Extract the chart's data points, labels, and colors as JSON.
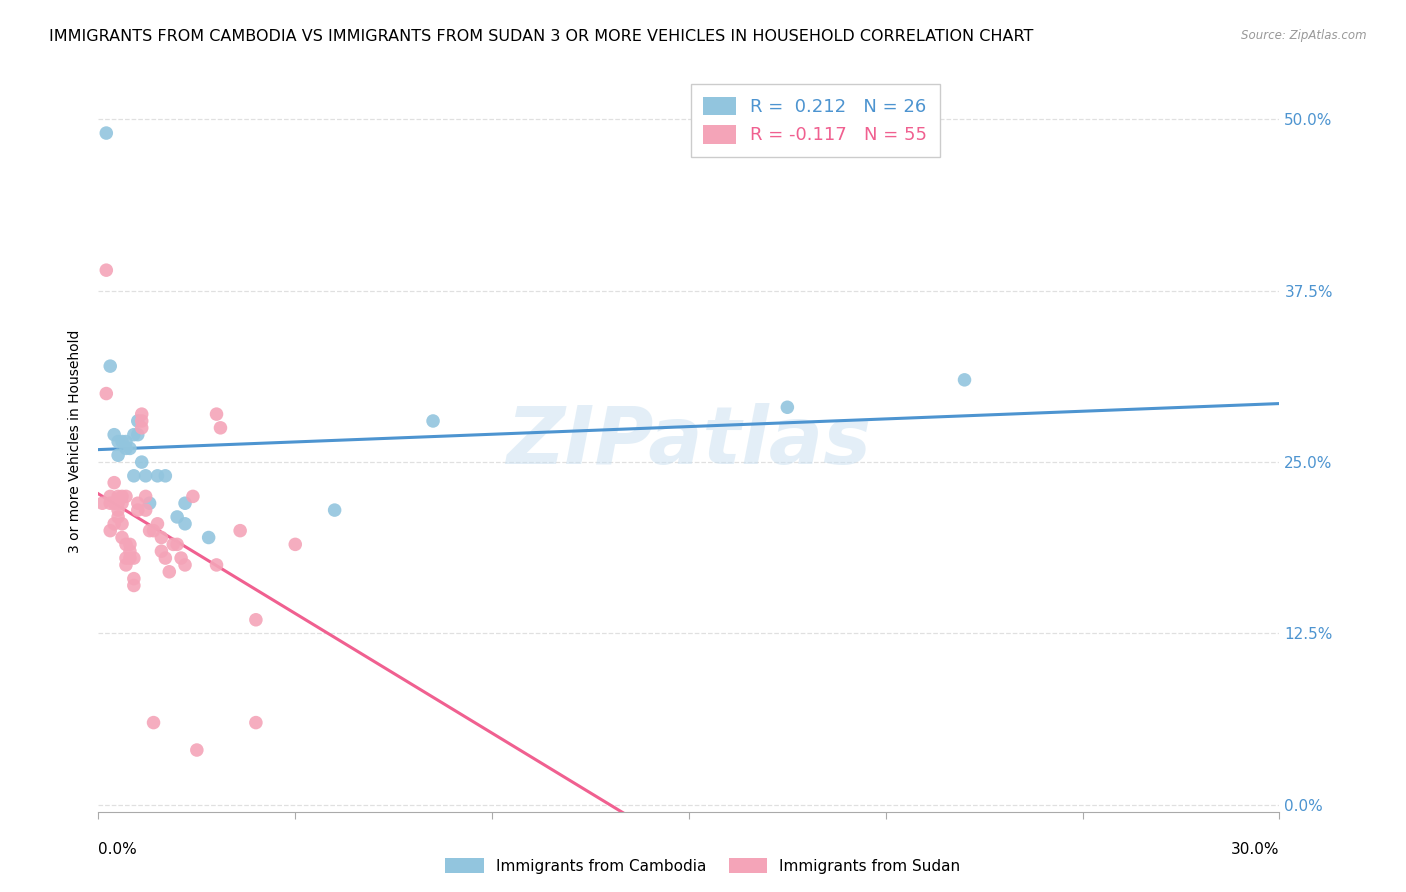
{
  "title": "IMMIGRANTS FROM CAMBODIA VS IMMIGRANTS FROM SUDAN 3 OR MORE VEHICLES IN HOUSEHOLD CORRELATION CHART",
  "source": "Source: ZipAtlas.com",
  "ylabel": "3 or more Vehicles in Household",
  "yticks": [
    0.0,
    0.125,
    0.25,
    0.375,
    0.5
  ],
  "ytick_labels": [
    "0.0%",
    "12.5%",
    "25.0%",
    "37.5%",
    "50.0%"
  ],
  "xlim": [
    0.0,
    0.3
  ],
  "ylim": [
    -0.005,
    0.535
  ],
  "watermark": "ZIPatlas",
  "cambodia_color": "#92c5de",
  "sudan_color": "#f4a4b8",
  "cambodia_trend_color": "#4d94d0",
  "sudan_trend_color": "#f06090",
  "right_tick_color": "#4d94d0",
  "grid_color": "#e0e0e0",
  "title_fontsize": 11.5,
  "axis_label_fontsize": 10,
  "tick_fontsize": 11,
  "legend_fontsize": 13,
  "cambodia_x": [
    0.002,
    0.004,
    0.005,
    0.005,
    0.006,
    0.007,
    0.007,
    0.008,
    0.009,
    0.009,
    0.01,
    0.01,
    0.011,
    0.012,
    0.013,
    0.015,
    0.017,
    0.02,
    0.022,
    0.022,
    0.028,
    0.06,
    0.085,
    0.175,
    0.22,
    0.003
  ],
  "cambodia_y": [
    0.49,
    0.27,
    0.255,
    0.265,
    0.265,
    0.265,
    0.26,
    0.26,
    0.27,
    0.24,
    0.27,
    0.28,
    0.25,
    0.24,
    0.22,
    0.24,
    0.24,
    0.21,
    0.22,
    0.205,
    0.195,
    0.215,
    0.28,
    0.29,
    0.31,
    0.32
  ],
  "sudan_x": [
    0.001,
    0.002,
    0.002,
    0.003,
    0.003,
    0.003,
    0.004,
    0.004,
    0.004,
    0.005,
    0.005,
    0.005,
    0.005,
    0.006,
    0.006,
    0.006,
    0.006,
    0.007,
    0.007,
    0.007,
    0.007,
    0.008,
    0.008,
    0.008,
    0.009,
    0.009,
    0.009,
    0.01,
    0.01,
    0.011,
    0.011,
    0.011,
    0.012,
    0.012,
    0.013,
    0.014,
    0.015,
    0.016,
    0.016,
    0.017,
    0.018,
    0.019,
    0.02,
    0.021,
    0.022,
    0.024,
    0.03,
    0.031,
    0.036,
    0.04,
    0.014,
    0.025,
    0.05,
    0.03,
    0.04
  ],
  "sudan_y": [
    0.22,
    0.39,
    0.3,
    0.225,
    0.22,
    0.2,
    0.22,
    0.205,
    0.235,
    0.22,
    0.225,
    0.21,
    0.215,
    0.205,
    0.22,
    0.225,
    0.195,
    0.225,
    0.175,
    0.18,
    0.19,
    0.18,
    0.19,
    0.185,
    0.165,
    0.16,
    0.18,
    0.215,
    0.22,
    0.275,
    0.285,
    0.28,
    0.225,
    0.215,
    0.2,
    0.2,
    0.205,
    0.185,
    0.195,
    0.18,
    0.17,
    0.19,
    0.19,
    0.18,
    0.175,
    0.225,
    0.285,
    0.275,
    0.2,
    0.135,
    0.06,
    0.04,
    0.19,
    0.175,
    0.06
  ]
}
